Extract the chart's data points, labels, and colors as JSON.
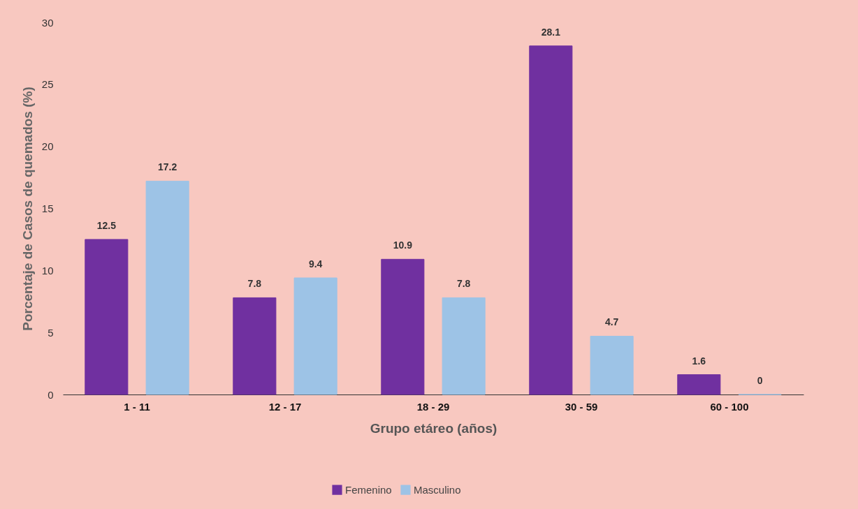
{
  "chart_data": {
    "type": "bar",
    "xlabel": "Grupo etáreo (años)",
    "ylabel": "Porcentaje de Casos de quemados (%)",
    "categories": [
      "1 - 11",
      "12 - 17",
      "18 - 29",
      "30 - 59",
      "60 - 100"
    ],
    "series": [
      {
        "name": "Femenino",
        "color": "#7030a0",
        "values": [
          12.5,
          7.8,
          10.9,
          28.1,
          1.6
        ]
      },
      {
        "name": "Masculino",
        "color": "#9dc3e6",
        "values": [
          17.2,
          9.4,
          7.8,
          4.7,
          0
        ]
      }
    ],
    "ylim": [
      0,
      30
    ],
    "yticks": [
      0,
      5,
      10,
      15,
      20,
      25,
      30
    ],
    "grid": false,
    "legend": "bottom",
    "data_labels": true
  }
}
